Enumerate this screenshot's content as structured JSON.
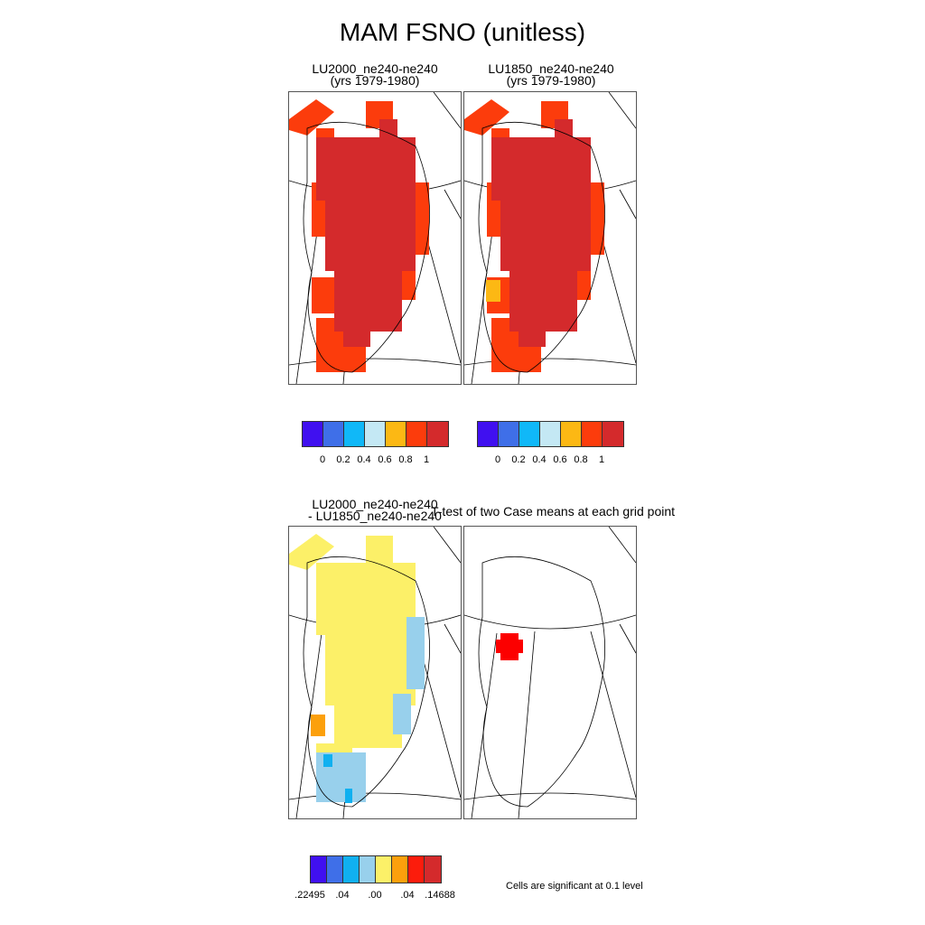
{
  "title": "MAM FSNO (unitless)",
  "panels": {
    "p1": {
      "line1": "LU2000_ne240-ne240",
      "line2": "(yrs 1979-1980)"
    },
    "p2": {
      "line1": "LU1850_ne240-ne240",
      "line2": "(yrs 1979-1980)"
    },
    "p3": {
      "line1": "LU2000_ne240-ne240",
      "line2": "- LU1850_ne240-ne240"
    },
    "p4": {
      "line1": "T-test of two Case means at each grid point"
    }
  },
  "colorbars": {
    "top": {
      "colors": [
        "#4010f0",
        "#3f6fe8",
        "#10b8f8",
        "#c4e8f4",
        "#fcb814",
        "#fc3c0c",
        "#d42a2c"
      ],
      "labels": [
        "0",
        "0.2",
        "0.4",
        "0.6",
        "0.8",
        "1"
      ]
    },
    "diff": {
      "colors": [
        "#4010f0",
        "#3f6fe8",
        "#10b0f0",
        "#98d0ec",
        "#fcf068",
        "#fca00c",
        "#fc1c0c",
        "#d42a2c"
      ],
      "labels": [
        ".22495",
        ".04",
        ".00",
        ".04",
        ".14688"
      ]
    }
  },
  "significance_note": "Cells are significant at 0.1 level",
  "map_colors": {
    "high": "#d42a2c",
    "edge": "#fc3c0c",
    "mid": "#fcb814",
    "diff_main": "#fcf068",
    "diff_neg": "#98d0ec",
    "diff_neg2": "#10b0f0",
    "diff_pos": "#fca00c",
    "significant": "#fc0000"
  }
}
